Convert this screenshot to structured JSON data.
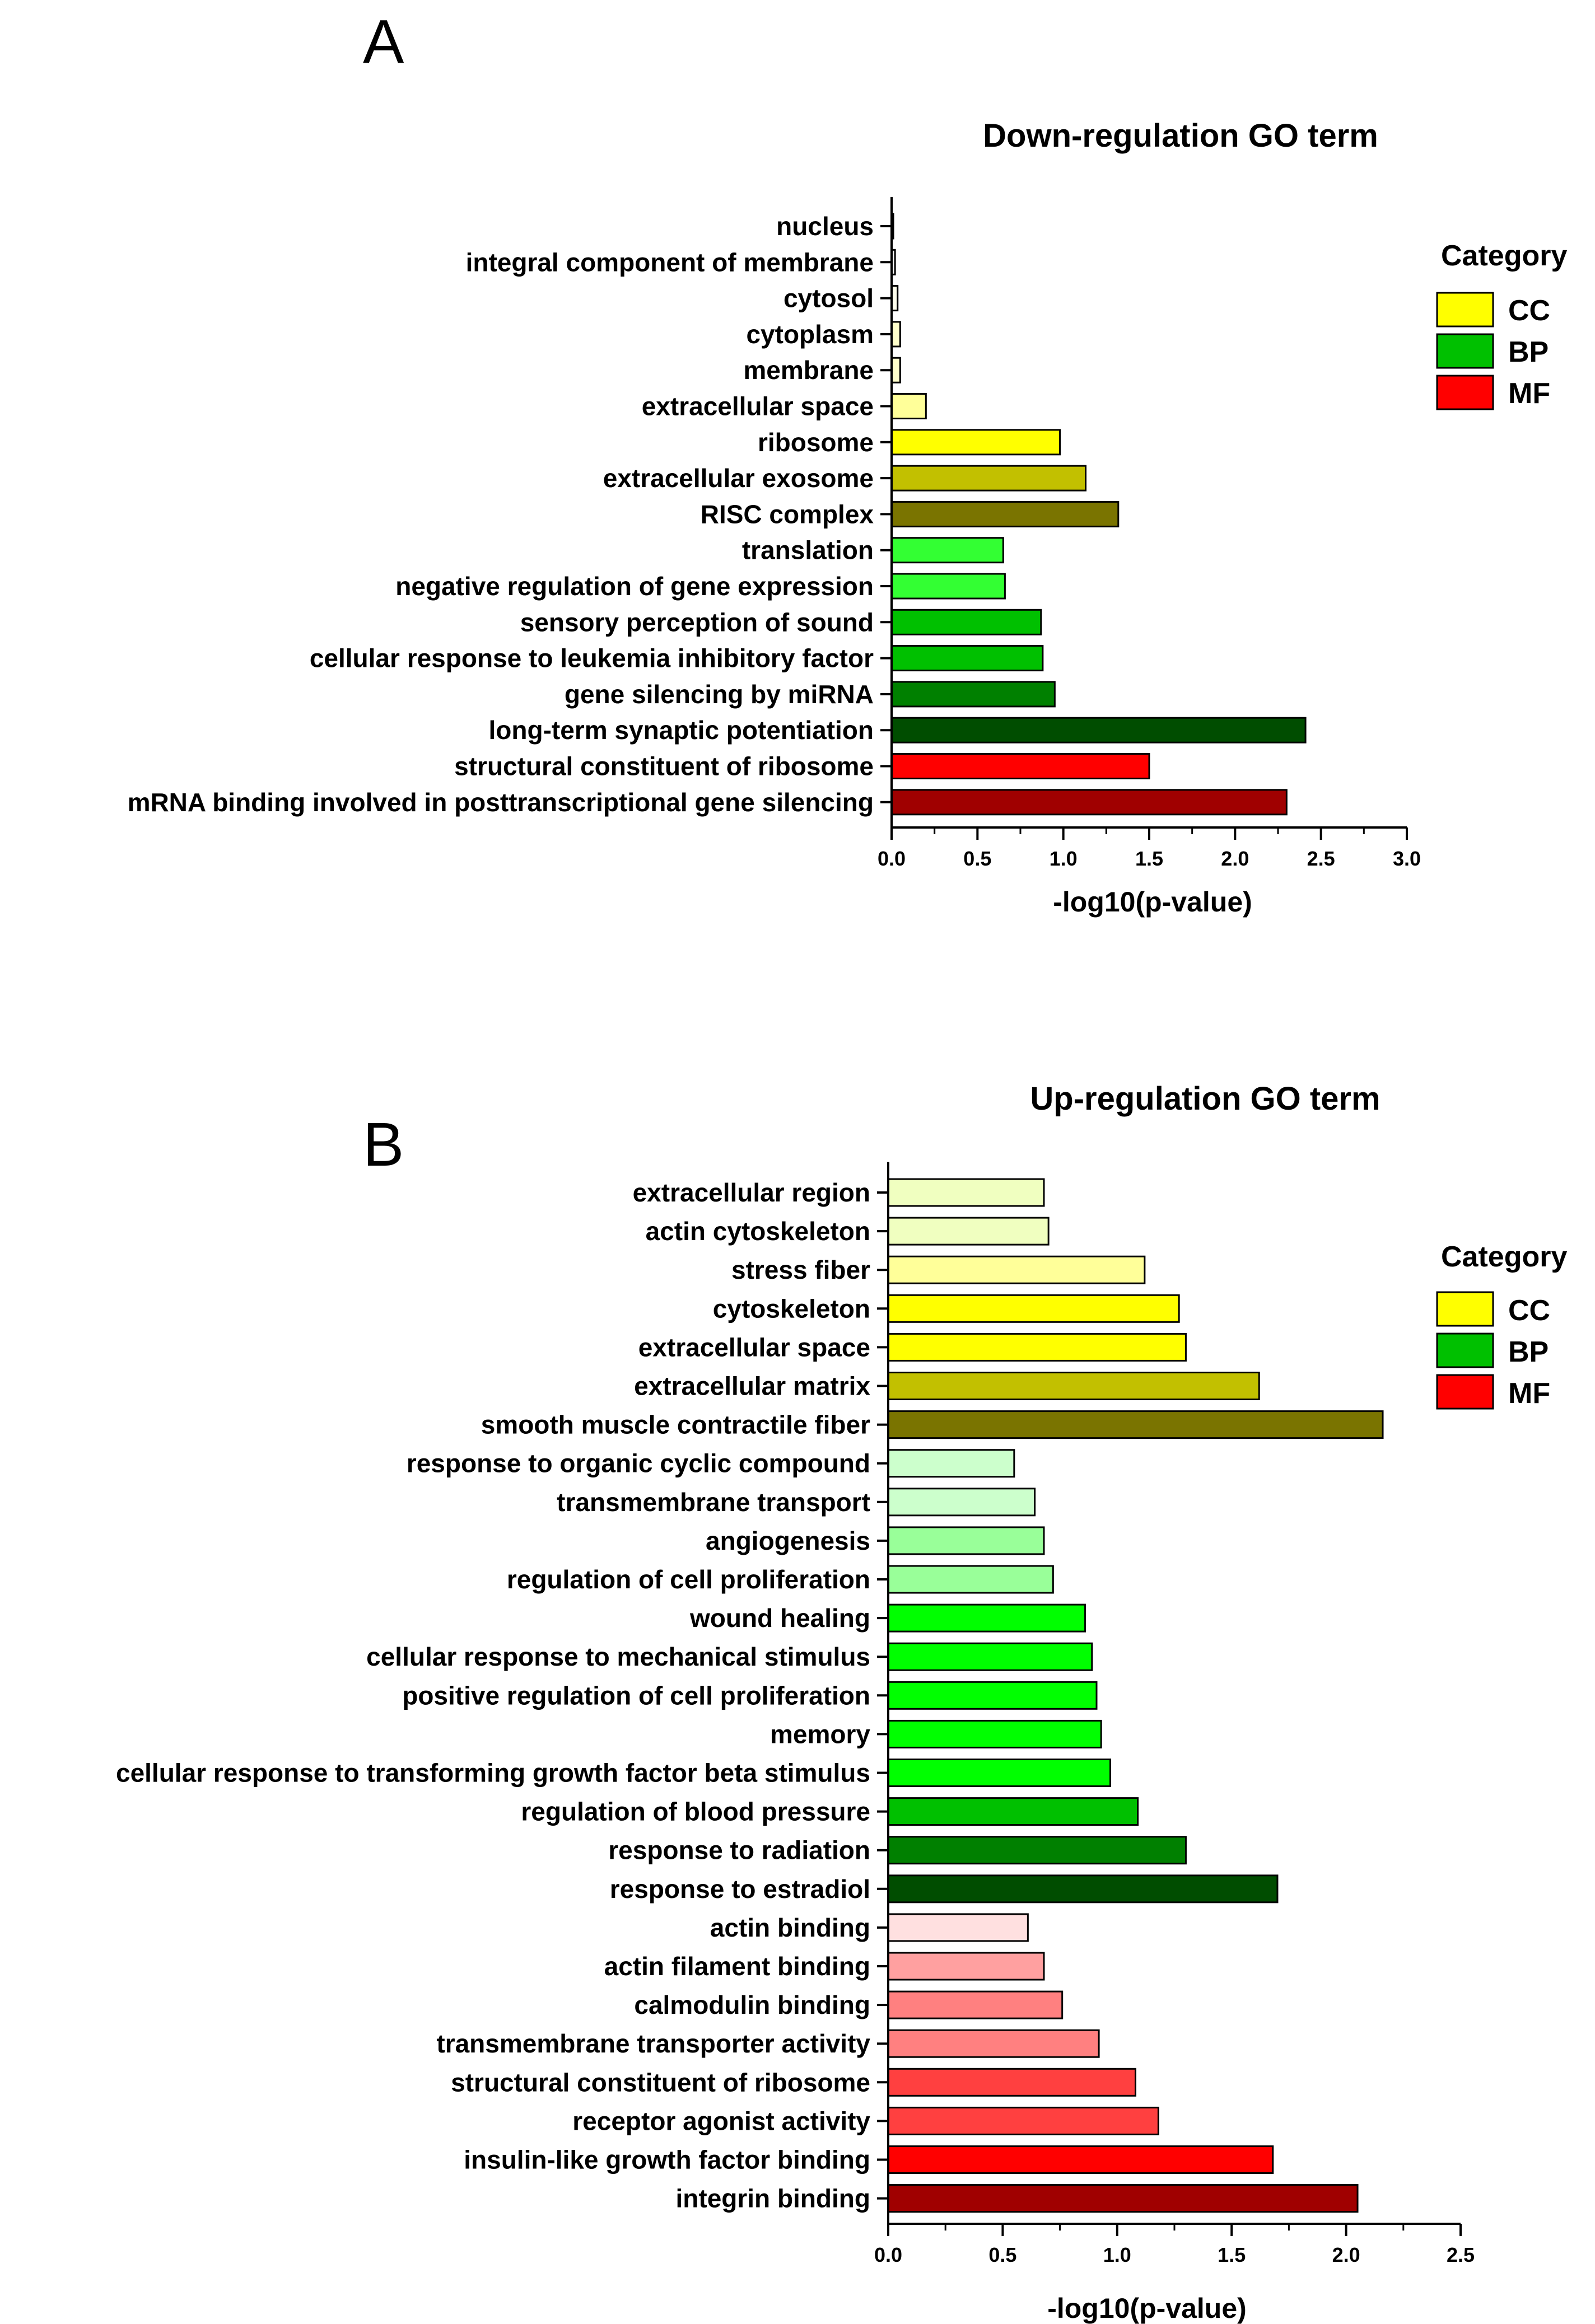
{
  "chart_data": [
    {
      "panel": "A",
      "type": "bar",
      "orientation": "horizontal",
      "title": "Down-regulation GO term",
      "xlabel": "-log10(p-value)",
      "ylabel": "",
      "xlim": [
        0,
        3.0
      ],
      "xticks": [
        "0.0",
        "0.5",
        "1.0",
        "1.5",
        "2.0",
        "2.5",
        "3.0"
      ],
      "grid": false,
      "legend": {
        "title": "Category",
        "placement": "top-right",
        "entries": [
          {
            "label": "CC",
            "color": "#ffff00"
          },
          {
            "label": "BP",
            "color": "#00c000"
          },
          {
            "label": "MF",
            "color": "#ff0000"
          }
        ]
      },
      "bars": [
        {
          "term": "nucleus",
          "value": 0.01,
          "category": "CC",
          "color": "#ffffff"
        },
        {
          "term": "integral component of membrane",
          "value": 0.02,
          "category": "CC",
          "color": "#ffffff"
        },
        {
          "term": "cytosol",
          "value": 0.035,
          "category": "CC",
          "color": "#ffffee"
        },
        {
          "term": "cytoplasm",
          "value": 0.05,
          "category": "CC",
          "color": "#ffffcc"
        },
        {
          "term": "membrane",
          "value": 0.05,
          "category": "CC",
          "color": "#ffffcc"
        },
        {
          "term": "extracellular space",
          "value": 0.2,
          "category": "CC",
          "color": "#ffff99"
        },
        {
          "term": "ribosome",
          "value": 0.98,
          "category": "CC",
          "color": "#ffff00"
        },
        {
          "term": "extracellular exosome",
          "value": 1.13,
          "category": "CC",
          "color": "#c2c000"
        },
        {
          "term": "RISC complex",
          "value": 1.32,
          "category": "CC",
          "color": "#7a7400"
        },
        {
          "term": "translation",
          "value": 0.65,
          "category": "BP",
          "color": "#33ff33"
        },
        {
          "term": "negative regulation of gene expression",
          "value": 0.66,
          "category": "BP",
          "color": "#33ff33"
        },
        {
          "term": "sensory perception of sound",
          "value": 0.87,
          "category": "BP",
          "color": "#00c000"
        },
        {
          "term": "cellular response to leukemia inhibitory factor",
          "value": 0.88,
          "category": "BP",
          "color": "#00c000"
        },
        {
          "term": "gene silencing by miRNA",
          "value": 0.95,
          "category": "BP",
          "color": "#008000"
        },
        {
          "term": "long-term synaptic potentiation",
          "value": 2.41,
          "category": "BP",
          "color": "#004d00"
        },
        {
          "term": "structural constituent of ribosome",
          "value": 1.5,
          "category": "MF",
          "color": "#ff0000"
        },
        {
          "term": "mRNA binding involved in posttranscriptional gene silencing",
          "value": 2.3,
          "category": "MF",
          "color": "#a00000"
        }
      ]
    },
    {
      "panel": "B",
      "type": "bar",
      "orientation": "horizontal",
      "title": "Up-regulation GO term",
      "xlabel": "-log10(p-value)",
      "ylabel": "",
      "xlim": [
        0,
        2.5
      ],
      "xticks": [
        "0.0",
        "0.5",
        "1.0",
        "1.5",
        "2.0",
        "2.5"
      ],
      "grid": false,
      "legend": {
        "title": "Category",
        "placement": "top-right",
        "entries": [
          {
            "label": "CC",
            "color": "#ffff00"
          },
          {
            "label": "BP",
            "color": "#00c000"
          },
          {
            "label": "MF",
            "color": "#ff0000"
          }
        ]
      },
      "bars": [
        {
          "term": "extracellular region",
          "value": 0.68,
          "category": "CC",
          "color": "#f0ffc0"
        },
        {
          "term": "actin cytoskeleton",
          "value": 0.7,
          "category": "CC",
          "color": "#f0ffc0"
        },
        {
          "term": "stress fiber",
          "value": 1.12,
          "category": "CC",
          "color": "#ffff99"
        },
        {
          "term": "cytoskeleton",
          "value": 1.27,
          "category": "CC",
          "color": "#ffff00"
        },
        {
          "term": "extracellular space",
          "value": 1.3,
          "category": "CC",
          "color": "#ffff00"
        },
        {
          "term": "extracellular matrix",
          "value": 1.62,
          "category": "CC",
          "color": "#c2c000"
        },
        {
          "term": "smooth muscle contractile fiber",
          "value": 2.16,
          "category": "CC",
          "color": "#7a7400"
        },
        {
          "term": "response to organic cyclic compound",
          "value": 0.55,
          "category": "BP",
          "color": "#ccffcc"
        },
        {
          "term": "transmembrane transport",
          "value": 0.64,
          "category": "BP",
          "color": "#ccffcc"
        },
        {
          "term": "angiogenesis",
          "value": 0.68,
          "category": "BP",
          "color": "#99ff99"
        },
        {
          "term": "regulation of cell proliferation",
          "value": 0.72,
          "category": "BP",
          "color": "#99ff99"
        },
        {
          "term": "wound healing",
          "value": 0.86,
          "category": "BP",
          "color": "#00ff00"
        },
        {
          "term": "cellular response to mechanical stimulus",
          "value": 0.89,
          "category": "BP",
          "color": "#00ff00"
        },
        {
          "term": "positive regulation of cell proliferation",
          "value": 0.91,
          "category": "BP",
          "color": "#00ff00"
        },
        {
          "term": "memory",
          "value": 0.93,
          "category": "BP",
          "color": "#00ff00"
        },
        {
          "term": "cellular response to transforming growth factor beta stimulus",
          "value": 0.97,
          "category": "BP",
          "color": "#00ff00"
        },
        {
          "term": "regulation of blood pressure",
          "value": 1.09,
          "category": "BP",
          "color": "#00c000"
        },
        {
          "term": "response to radiation",
          "value": 1.3,
          "category": "BP",
          "color": "#008000"
        },
        {
          "term": "response to estradiol",
          "value": 1.7,
          "category": "BP",
          "color": "#004d00"
        },
        {
          "term": "actin binding",
          "value": 0.61,
          "category": "MF",
          "color": "#ffe0e0"
        },
        {
          "term": "actin filament binding",
          "value": 0.68,
          "category": "MF",
          "color": "#ffa0a0"
        },
        {
          "term": "calmodulin binding",
          "value": 0.76,
          "category": "MF",
          "color": "#ff8080"
        },
        {
          "term": "transmembrane transporter activity",
          "value": 0.92,
          "category": "MF",
          "color": "#ff8080"
        },
        {
          "term": "structural constituent of ribosome",
          "value": 1.08,
          "category": "MF",
          "color": "#ff4040"
        },
        {
          "term": "receptor agonist activity",
          "value": 1.18,
          "category": "MF",
          "color": "#ff4040"
        },
        {
          "term": "insulin-like growth factor binding",
          "value": 1.68,
          "category": "MF",
          "color": "#ff0000"
        },
        {
          "term": "integrin binding",
          "value": 2.05,
          "category": "MF",
          "color": "#a00000"
        }
      ]
    }
  ]
}
